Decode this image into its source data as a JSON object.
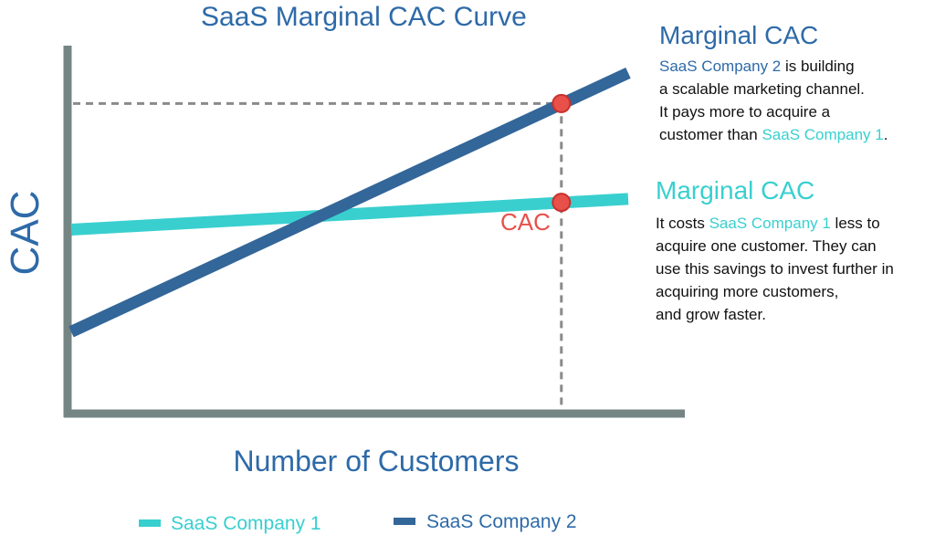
{
  "chart_data": {
    "type": "line",
    "title": "SaaS Marginal CAC Curve",
    "xlabel": "Number of Customers",
    "ylabel": "CAC",
    "grid": false,
    "legend_position": "bottom",
    "x": [
      0,
      1
    ],
    "series": [
      {
        "name": "SaaS Company 1",
        "color": "#39cfcf",
        "values": [
          0.54,
          0.63
        ]
      },
      {
        "name": "SaaS Company 2",
        "color": "#336699",
        "values": [
          0.24,
          1.0
        ]
      }
    ],
    "xlim": [
      0,
      1.25
    ],
    "ylim": [
      0,
      1.08
    ],
    "reference_x": 0.88,
    "markers": [
      {
        "series": "SaaS Company 2",
        "x": 0.88,
        "y": 0.91
      },
      {
        "series": "SaaS Company 1",
        "x": 0.88,
        "y": 0.62
      }
    ],
    "marker_color": "#e8504a",
    "point_label": "CAC",
    "annotations": [
      {
        "title": "Marginal CAC",
        "lines": [
          [
            {
              "text": "SaaS Company 2",
              "hl": "dark"
            },
            {
              "text": " is  building"
            }
          ],
          [
            {
              "text": "a scalable marketing channel."
            }
          ],
          [
            {
              "text": "It pays more to acquire a"
            }
          ],
          [
            {
              "text": "customer than "
            },
            {
              "text": "SaaS Company 1",
              "hl": "teal"
            },
            {
              "text": "."
            }
          ]
        ]
      },
      {
        "title": "Marginal CAC",
        "lines": [
          [
            {
              "text": "It costs "
            },
            {
              "text": "SaaS Company 1",
              "hl": "teal"
            },
            {
              "text": " less to"
            }
          ],
          [
            {
              "text": "acquire one customer. They can"
            }
          ],
          [
            {
              "text": "use this savings to invest further in"
            }
          ],
          [
            {
              "text": "acquiring more customers,"
            }
          ],
          [
            {
              "text": "and grow faster."
            }
          ]
        ]
      }
    ]
  },
  "colors": {
    "axis": "#748584",
    "guide": "#8a8a8a"
  }
}
